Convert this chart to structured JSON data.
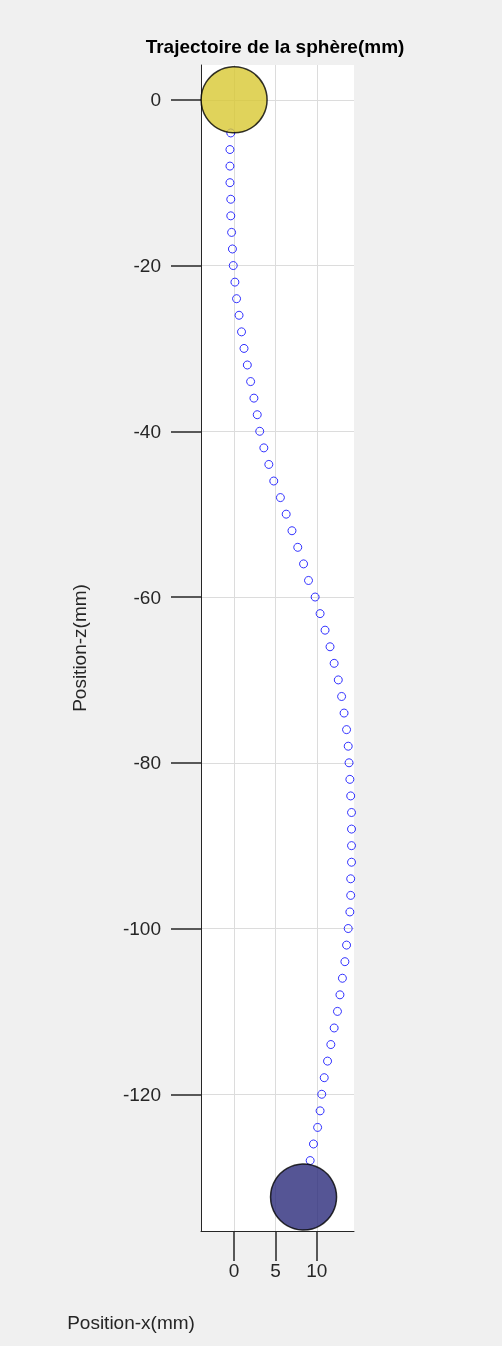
{
  "chart_data": {
    "type": "scatter",
    "title": "Trajectoire de la sphère(mm)",
    "xlabel": "Position-x(mm)",
    "ylabel": "Position-z(mm)",
    "xlim": [
      -4,
      14.5
    ],
    "xticks": [
      0,
      5,
      10
    ],
    "ylim": [
      -136.5,
      4.2
    ],
    "yticks": [
      0,
      -20,
      -40,
      -60,
      -80,
      -100,
      -120
    ],
    "grid": true,
    "marker": "circle",
    "series": [
      {
        "color": "#0000ff",
        "x": [
          -0.4,
          -0.5,
          -0.5,
          -0.5,
          -0.4,
          -0.4,
          -0.3,
          -0.2,
          -0.1,
          0.1,
          0.3,
          0.6,
          0.9,
          1.2,
          1.6,
          2.0,
          2.4,
          2.8,
          3.1,
          3.6,
          4.2,
          4.8,
          5.6,
          6.3,
          7.0,
          7.7,
          8.4,
          9.0,
          9.8,
          10.4,
          11.0,
          11.6,
          12.1,
          12.6,
          13.0,
          13.3,
          13.6,
          13.8,
          13.9,
          14.0,
          14.1,
          14.2,
          14.2,
          14.2,
          14.2,
          14.1,
          14.1,
          14.0,
          13.8,
          13.6,
          13.4,
          13.1,
          12.8,
          12.5,
          12.1,
          11.7,
          11.3,
          10.9,
          10.6,
          10.4,
          10.1,
          9.6,
          9.2
        ],
        "values": [
          -4,
          -6,
          -8,
          -10,
          -12,
          -14,
          -16,
          -18,
          -20,
          -22,
          -24,
          -26,
          -28,
          -30,
          -32,
          -34,
          -36,
          -38,
          -40,
          -42,
          -44,
          -46,
          -48,
          -50,
          -52,
          -54,
          -56,
          -58,
          -60,
          -62,
          -64,
          -66,
          -68,
          -70,
          -72,
          -74,
          -76,
          -78,
          -80,
          -82,
          -84,
          -86,
          -88,
          -90,
          -92,
          -94,
          -96,
          -98,
          -100,
          -102,
          -104,
          -106,
          -108,
          -110,
          -112,
          -114,
          -116,
          -118,
          -120,
          -122,
          -124,
          -126,
          -128
        ]
      },
      {
        "x": [
          0,
          8.4
        ],
        "values": [
          0,
          -132.4
        ],
        "colors": [
          "#d8c832",
          "#2a2a7a"
        ]
      }
    ]
  }
}
